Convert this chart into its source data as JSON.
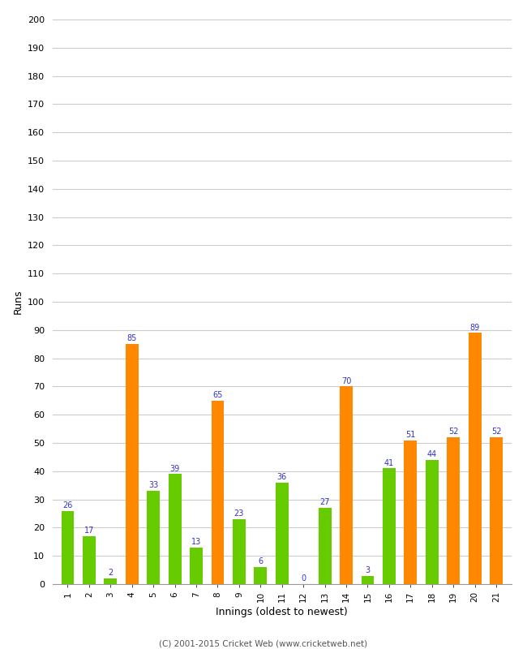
{
  "innings": [
    1,
    2,
    3,
    4,
    5,
    6,
    7,
    8,
    9,
    10,
    11,
    12,
    13,
    14,
    15,
    16,
    17,
    18,
    19,
    20,
    21
  ],
  "values": [
    26,
    17,
    2,
    85,
    33,
    39,
    13,
    65,
    23,
    6,
    36,
    0,
    27,
    70,
    3,
    41,
    51,
    44,
    52,
    89,
    52
  ],
  "colors": [
    "#66cc00",
    "#66cc00",
    "#66cc00",
    "#ff8800",
    "#66cc00",
    "#66cc00",
    "#66cc00",
    "#ff8800",
    "#66cc00",
    "#66cc00",
    "#66cc00",
    "#66cc00",
    "#66cc00",
    "#ff8800",
    "#66cc00",
    "#66cc00",
    "#ff8800",
    "#66cc00",
    "#ff8800",
    "#ff8800",
    "#ff8800"
  ],
  "xlabel": "Innings (oldest to newest)",
  "ylabel": "Runs",
  "ylim": [
    0,
    200
  ],
  "yticks": [
    0,
    10,
    20,
    30,
    40,
    50,
    60,
    70,
    80,
    90,
    100,
    110,
    120,
    130,
    140,
    150,
    160,
    170,
    180,
    190,
    200
  ],
  "label_color": "#3333cc",
  "background_color": "#ffffff",
  "grid_color": "#cccccc",
  "footer": "(C) 2001-2015 Cricket Web (www.cricketweb.net)"
}
